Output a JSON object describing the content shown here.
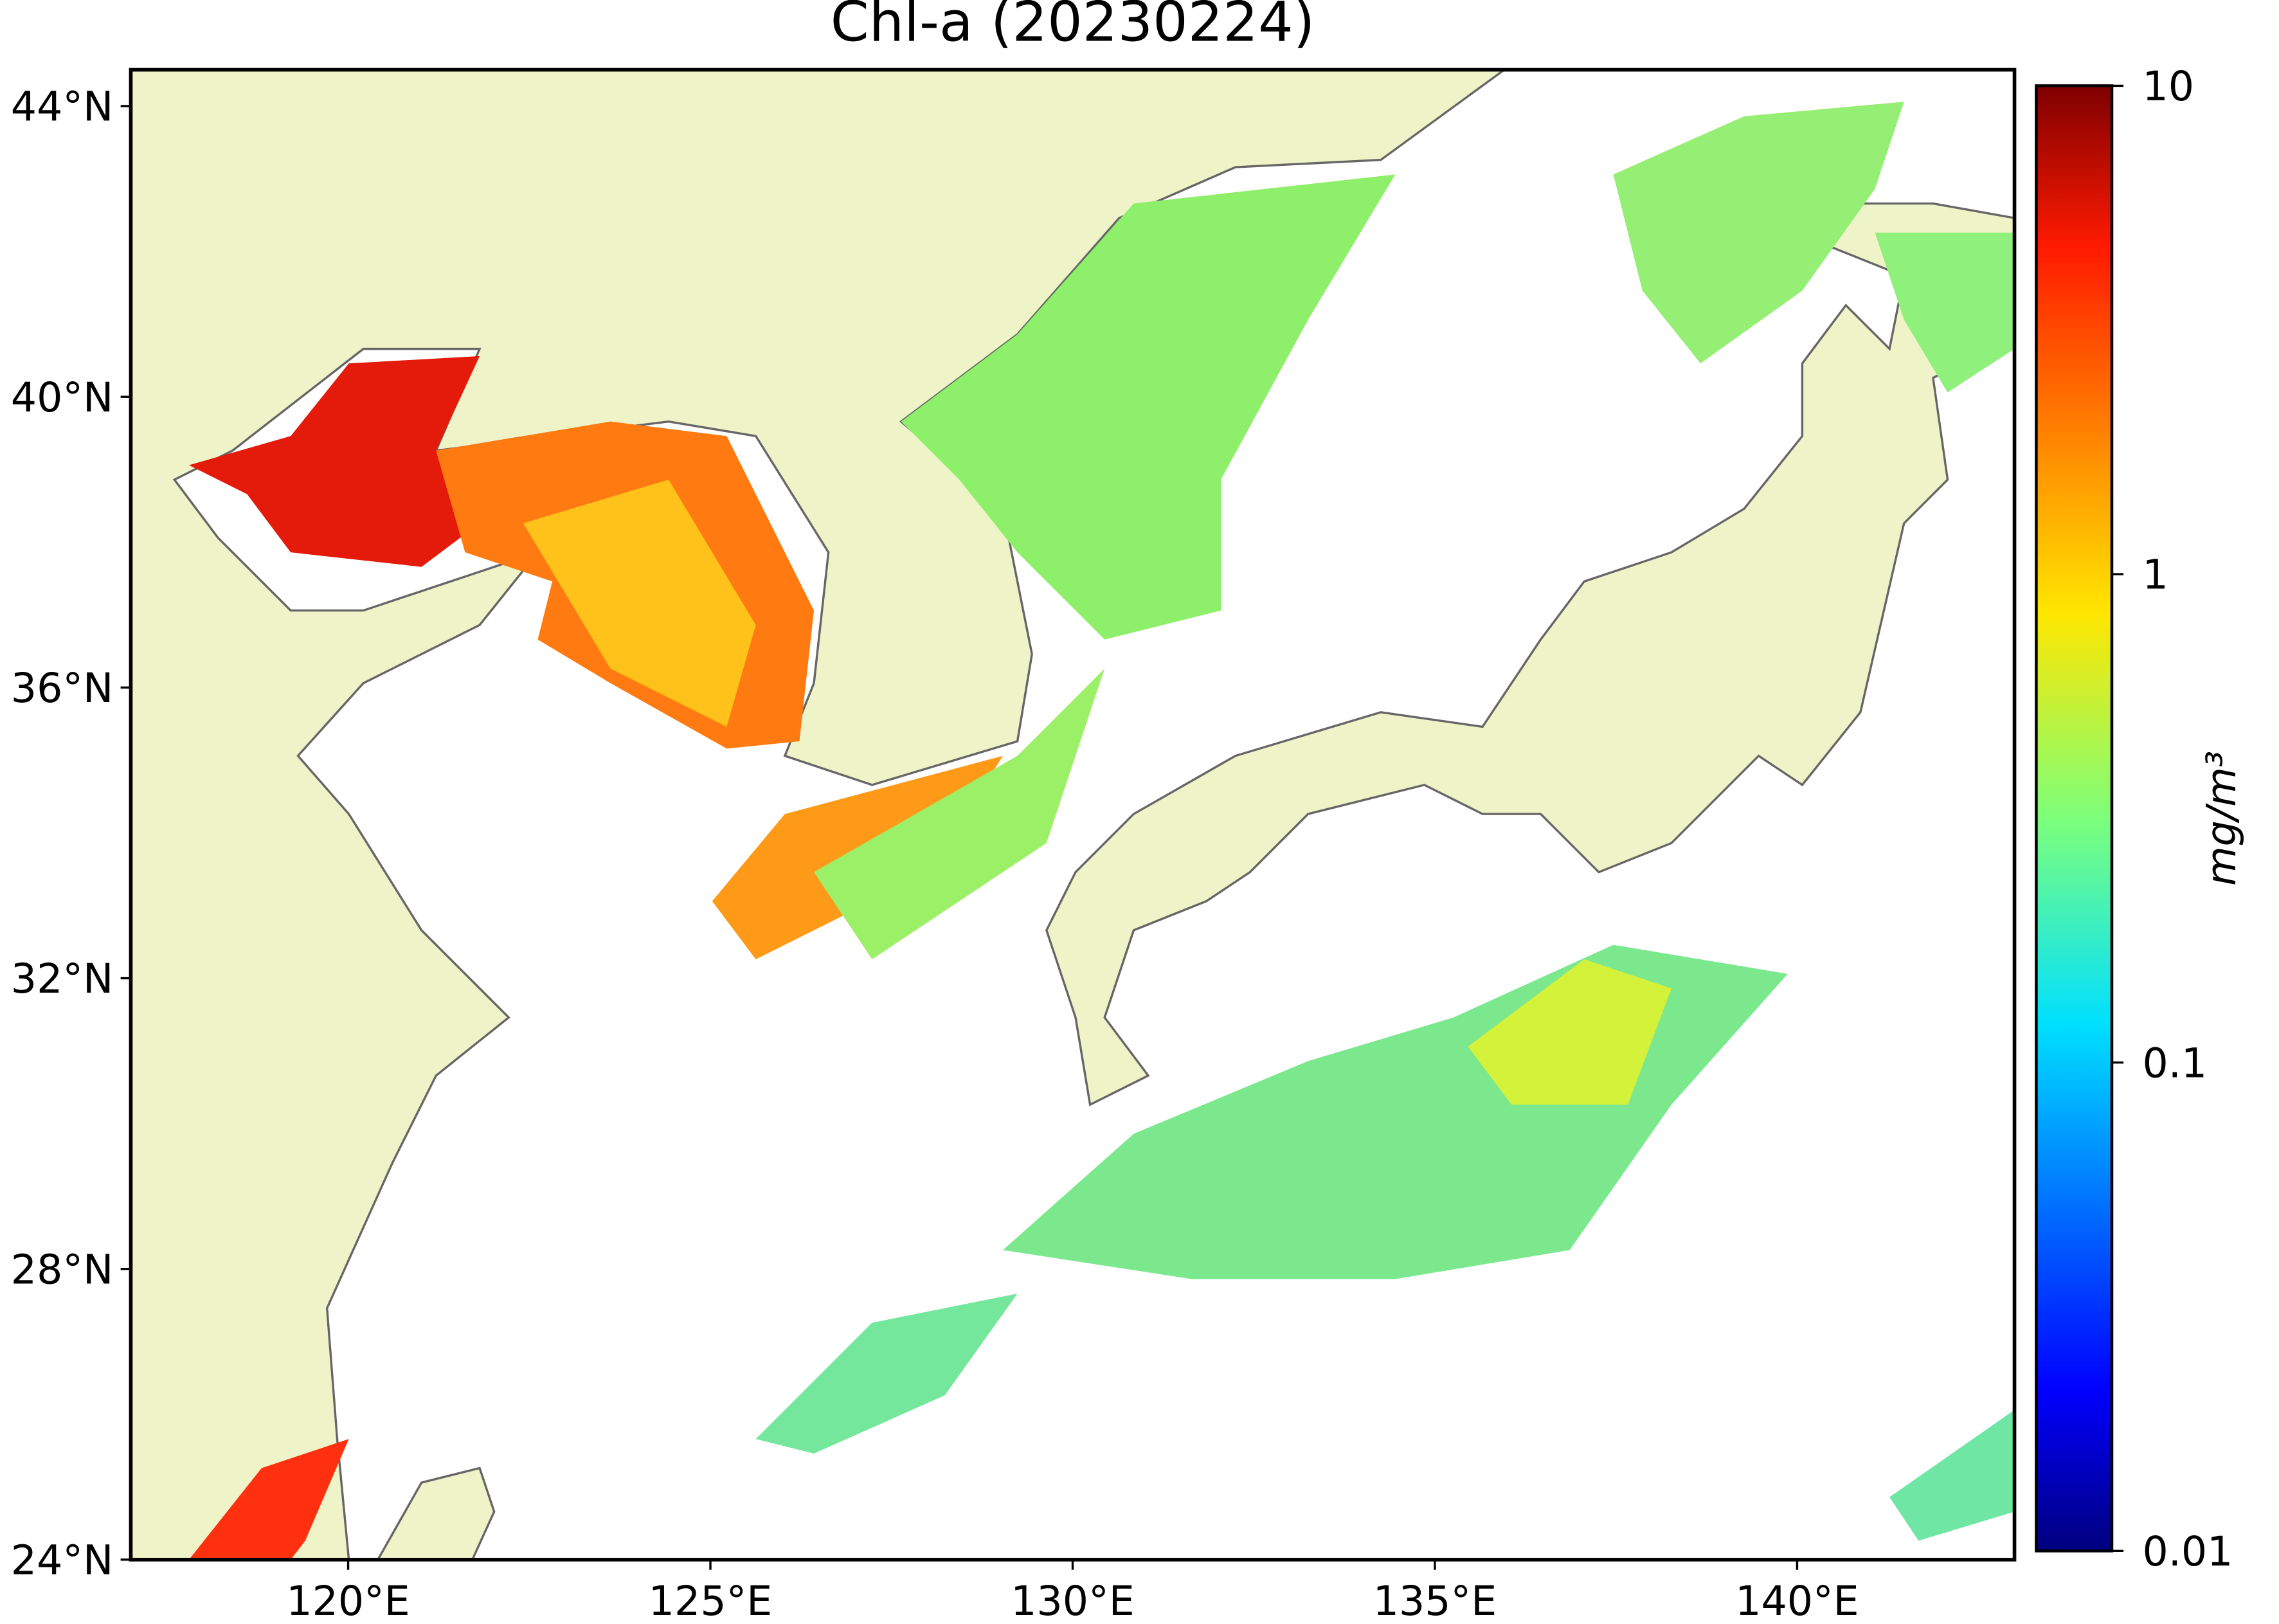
{
  "chart_data": {
    "type": "map",
    "title": "Chl-a (20230224)",
    "lonlim": [
      117,
      143
    ],
    "latlim": [
      24,
      44.5
    ],
    "xticks": [
      {
        "value": 120,
        "label": "120°E"
      },
      {
        "value": 125,
        "label": "125°E"
      },
      {
        "value": 130,
        "label": "130°E"
      },
      {
        "value": 135,
        "label": "135°E"
      },
      {
        "value": 140,
        "label": "140°E"
      }
    ],
    "yticks": [
      {
        "value": 24,
        "label": "24°N"
      },
      {
        "value": 28,
        "label": "28°N"
      },
      {
        "value": 32,
        "label": "32°N"
      },
      {
        "value": 36,
        "label": "36°N"
      },
      {
        "value": 40,
        "label": "40°N"
      },
      {
        "value": 44,
        "label": "44°N"
      }
    ],
    "colorbar": {
      "label": "mg/m³",
      "log": true,
      "lim": [
        0.01,
        10
      ],
      "ticks": [
        0.01,
        0.1,
        1,
        10
      ]
    }
  }
}
